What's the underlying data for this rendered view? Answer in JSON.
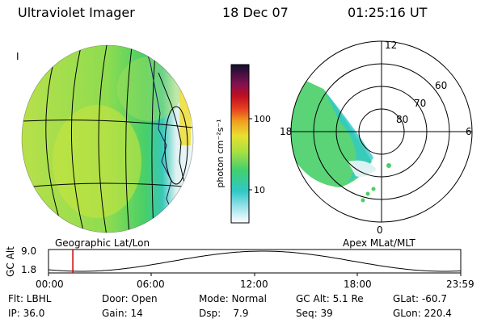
{
  "header": {
    "instrument": "Ultraviolet Imager",
    "date": "18 Dec 07",
    "time": "01:25:16 UT"
  },
  "left_panel": {
    "caption": "Geographic Lat/Lon",
    "corner_mark": "I"
  },
  "colorbar": {
    "label": "photon cm⁻²s⁻¹",
    "ticks": [
      "100",
      "10"
    ]
  },
  "polar_panel": {
    "caption": "Apex MLat/MLT",
    "mlt_labels": [
      "12",
      "18",
      "6",
      "0"
    ],
    "mlat_labels": [
      "60",
      "70",
      "80"
    ]
  },
  "timeline": {
    "ylabel": "GC Alt",
    "y_ticks": [
      "9.0",
      "1.8"
    ],
    "x_ticks": [
      "00:00",
      "06:00",
      "12:00",
      "18:00",
      "23:59"
    ],
    "marker_fraction": 0.059,
    "colors": {
      "curve": "#000000",
      "marker": "#cc0000"
    }
  },
  "info_rows": [
    [
      "Flt: LBHL",
      "Door: Open",
      "Mode: Normal",
      "GC Alt: 5.1 Re",
      "GLat: -60.7"
    ],
    [
      "IP: 36.0",
      "Gain: 14",
      "Dsp:    7.9",
      "Seq: 39",
      "GLon: 220.4"
    ]
  ],
  "colors": {
    "disk_main": "#b7e03a",
    "disk_green": "#48cf68",
    "disk_cyan": "#30c8c8",
    "terminator_white": "#eef6f6",
    "limb_yellow": "#f0e040"
  }
}
